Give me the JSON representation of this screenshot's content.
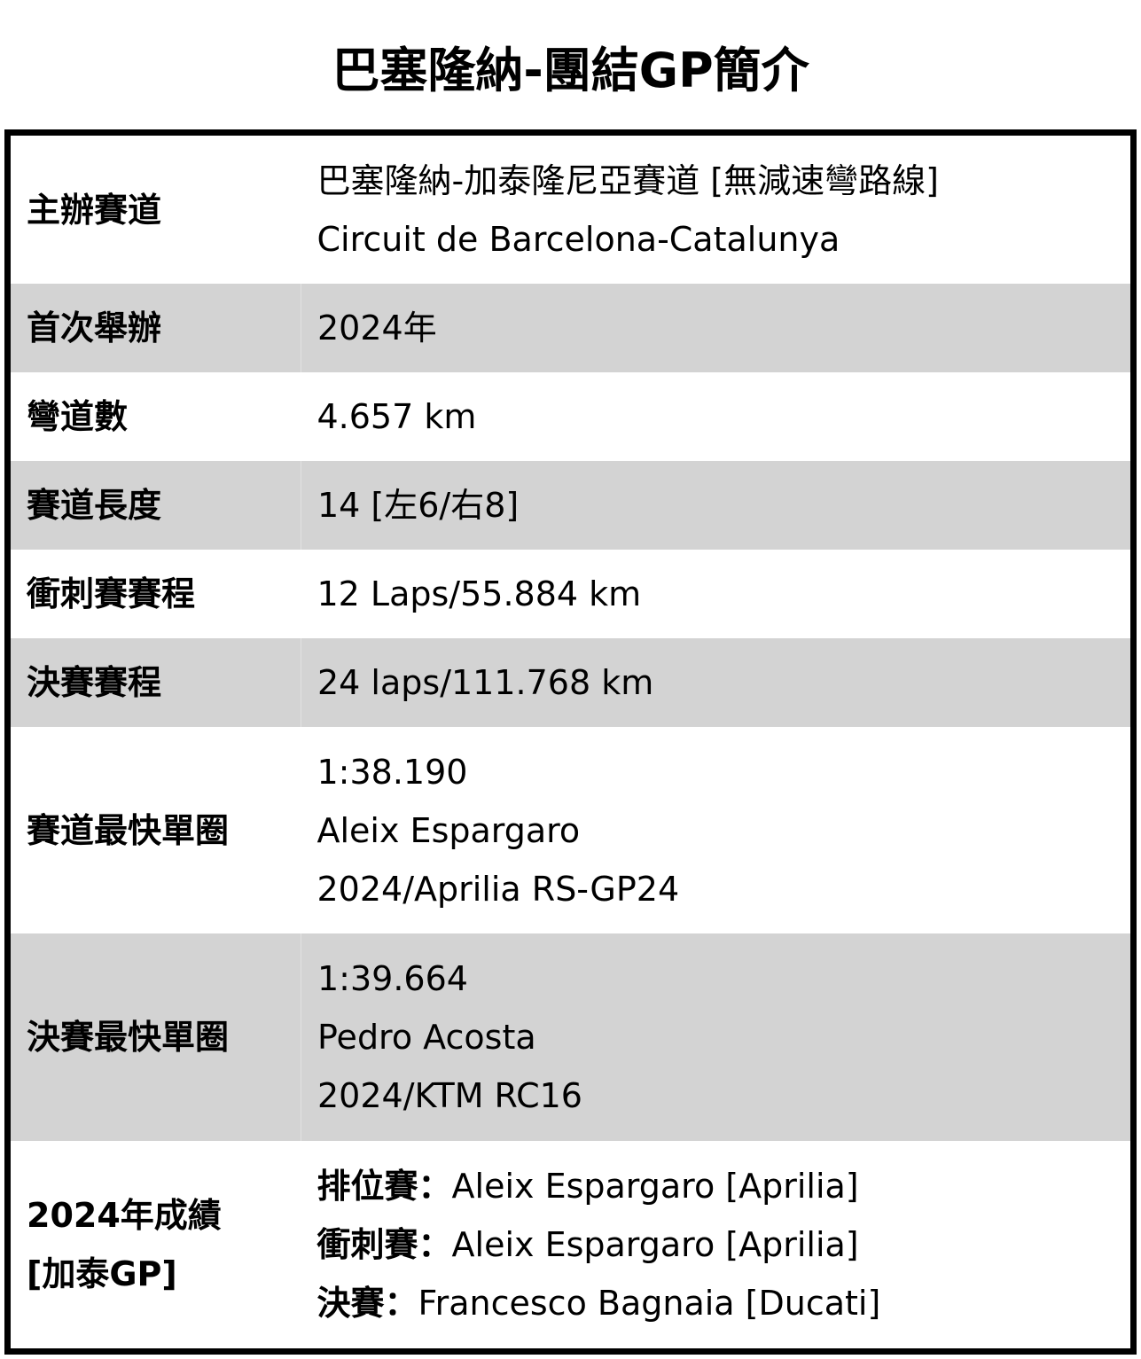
{
  "title": "巴塞隆納-團結GP簡介",
  "rows": [
    {
      "label": "主辦賽道",
      "lines": [
        "巴塞隆納-加泰隆尼亞賽道 [無減速彎路線]",
        "Circuit de Barcelona-Catalunya"
      ]
    },
    {
      "label": "首次舉辦",
      "lines": [
        "2024年"
      ]
    },
    {
      "label": "彎道數",
      "lines": [
        "4.657 km"
      ]
    },
    {
      "label": "賽道長度",
      "lines": [
        "14 [左6/右8]"
      ]
    },
    {
      "label": "衝刺賽賽程",
      "lines": [
        "12 Laps/55.884 km"
      ]
    },
    {
      "label": "決賽賽程",
      "lines": [
        "24 laps/111.768 km"
      ]
    },
    {
      "label": "賽道最快單圈",
      "lines": [
        "1:38.190",
        "Aleix Espargaro",
        "2024/Aprilia RS-GP24"
      ]
    },
    {
      "label": "決賽最快單圈",
      "lines": [
        "1:39.664",
        "Pedro Acosta",
        "2024/KTM RC16"
      ]
    }
  ],
  "results": {
    "label_line1": "2024年成績",
    "label_line2": "[加泰GP]",
    "items": [
      {
        "key": "排位賽：",
        "value": "Aleix Espargaro [Aprilia]"
      },
      {
        "key": "衝刺賽：",
        "value": "Aleix Espargaro [Aprilia]"
      },
      {
        "key": "決賽：",
        "value": "Francesco Bagnaia [Ducati]"
      }
    ]
  }
}
